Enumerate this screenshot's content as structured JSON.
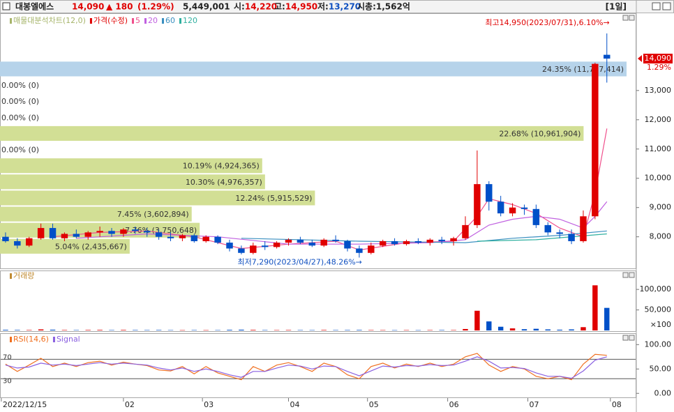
{
  "header": {
    "name": "대봉엘에스",
    "price": "14,090",
    "change": "▲ 180",
    "change_pct": "(1.29%)",
    "volume": "5,449,001",
    "items": [
      {
        "label": "시:",
        "value": "14,220"
      },
      {
        "label": "고:",
        "value": "14,950"
      },
      {
        "label": "저:",
        "value": "13,270"
      },
      {
        "label": "시총:",
        "value": "1,562억"
      }
    ],
    "period": "[1일]"
  },
  "chart_data": [
    {
      "type": "candlestick",
      "profile": {
        "name": "매물대분석차트(12,0)",
        "color": "#d2df95",
        "max_color": "#b6d3ea",
        "bins": [
          7399,
          7950,
          8501,
          9052,
          9603,
          10154,
          10705,
          11256,
          11807,
          12358,
          12909,
          13460,
          14011
        ],
        "percent": [
          5.04,
          7.76,
          7.45,
          12.24,
          10.3,
          10.19,
          0,
          22.68,
          0,
          0,
          0,
          24.35
        ],
        "volume": [
          2435667,
          3750648,
          3602894,
          5915529,
          4976357,
          4924365,
          0,
          10961904,
          0,
          0,
          0,
          11767414
        ],
        "value_labels": [
          "5.04% (2,435,667)",
          "7.76% (3,750,648)",
          "7.45% (3,602,894)",
          "12.24% (5,915,529)",
          "10.30% (4,976,357)",
          "10.19% (4,924,365)",
          "0.00% (0)",
          "22.68% (10,961,904)",
          "0.00% (0)",
          "0.00% (0)",
          "0.00% (0)",
          "24.35% (11,767,414)"
        ]
      },
      "price": {
        "name": "가격(수정)",
        "up_color": "#e00000",
        "down_color": "#0050c8",
        "open": [
          8000,
          7850,
          7700,
          7950,
          8300,
          7950,
          8100,
          8000,
          8150,
          8200,
          8100,
          8250,
          8200,
          8150,
          8000,
          7950,
          8050,
          7850,
          8000,
          7800,
          7600,
          7450,
          7700,
          7650,
          7800,
          7900,
          7800,
          7700,
          7900,
          7850,
          7600,
          7450,
          7700,
          7850,
          7750,
          7850,
          7800,
          7900,
          7850,
          7950,
          8400,
          9800,
          9200,
          8800,
          9000,
          8950,
          8400,
          8150,
          8100,
          7850,
          8700,
          14220
        ],
        "high": [
          8150,
          7950,
          8000,
          8450,
          8450,
          8150,
          8250,
          8200,
          8350,
          8300,
          8300,
          8350,
          8300,
          8250,
          8150,
          8100,
          8100,
          8050,
          8050,
          7900,
          7700,
          7800,
          7850,
          7850,
          7950,
          8000,
          7900,
          7950,
          8050,
          7900,
          7700,
          7800,
          7900,
          7950,
          7900,
          7950,
          7950,
          8000,
          8000,
          8700,
          10950,
          9900,
          9400,
          9150,
          9100,
          9100,
          8500,
          8250,
          8250,
          8900,
          13950,
          14950
        ],
        "low": [
          7800,
          7600,
          7650,
          7900,
          7900,
          7850,
          7950,
          7900,
          8000,
          8000,
          8000,
          8100,
          8000,
          7900,
          7850,
          7850,
          7800,
          7800,
          7750,
          7500,
          7400,
          7400,
          7550,
          7600,
          7700,
          7750,
          7650,
          7650,
          7800,
          7500,
          7290,
          7400,
          7650,
          7700,
          7700,
          7750,
          7700,
          7750,
          7700,
          7900,
          8300,
          8900,
          8700,
          8700,
          8750,
          8300,
          8050,
          7950,
          7750,
          7800,
          8600,
          13270
        ],
        "close": [
          7850,
          7700,
          7950,
          8300,
          7950,
          8100,
          8000,
          8150,
          8200,
          8100,
          8250,
          8200,
          8150,
          8000,
          7950,
          8050,
          7850,
          8000,
          7800,
          7600,
          7450,
          7700,
          7650,
          7800,
          7900,
          7800,
          7700,
          7900,
          7850,
          7600,
          7450,
          7700,
          7850,
          7750,
          7850,
          7800,
          7900,
          7850,
          7950,
          8400,
          9800,
          9200,
          8800,
          9000,
          8950,
          8400,
          8150,
          8100,
          7850,
          8700,
          13910,
          14090
        ]
      },
      "series": [
        {
          "name": "5",
          "color": "#f0508c",
          "x": [
            4,
            8,
            12,
            16,
            20,
            24,
            28,
            30,
            34,
            38,
            40,
            41,
            43,
            45,
            47,
            49,
            50,
            51
          ],
          "values": [
            8000,
            8150,
            8200,
            8000,
            7600,
            7750,
            7850,
            7550,
            7800,
            7850,
            8700,
            9300,
            9100,
            8800,
            8300,
            8000,
            9500,
            11700
          ]
        },
        {
          "name": "20",
          "color": "#c060e0",
          "x": [
            6,
            12,
            18,
            24,
            30,
            36,
            39,
            41,
            43,
            45,
            47,
            49,
            50,
            51
          ],
          "values": [
            7950,
            8100,
            8000,
            7750,
            7750,
            7800,
            7900,
            8400,
            8600,
            8700,
            8600,
            8300,
            8700,
            9200
          ]
        },
        {
          "name": "60",
          "color": "#3a8fc0",
          "x": [
            20,
            30,
            39,
            43,
            47,
            51
          ],
          "values": [
            7950,
            7850,
            7800,
            7950,
            8050,
            8200
          ]
        },
        {
          "name": "120",
          "color": "#30b0a0",
          "x": [
            40,
            45,
            51
          ],
          "values": [
            7850,
            7900,
            8100
          ]
        }
      ],
      "ylim": [
        6920,
        15640
      ],
      "yticks": [
        {
          "value": 8000,
          "label": "8,000"
        },
        {
          "value": 9000,
          "label": "9,000"
        },
        {
          "value": 10000,
          "label": "10,000"
        },
        {
          "value": 11000,
          "label": "11,000"
        },
        {
          "value": 12000,
          "label": "12,000"
        },
        {
          "value": 13000,
          "label": "13,000"
        }
      ],
      "last_label": "14,090",
      "last_change_label": "1.29%",
      "annotations": [
        {
          "text": "최고14,950(2023/07/31),6.10%→",
          "color": "#e00000"
        },
        {
          "text": "최저7,290(2023/04/27),48.26%→",
          "color": "#1050c0"
        }
      ]
    },
    {
      "type": "bar",
      "name": "거래량",
      "name_color": "#c08a30",
      "values": [
        1500,
        1200,
        1000,
        2500,
        1800,
        1000,
        900,
        1100,
        1300,
        900,
        1200,
        1000,
        900,
        1100,
        800,
        700,
        900,
        700,
        800,
        1500,
        1800,
        1300,
        900,
        800,
        1000,
        900,
        800,
        1100,
        900,
        1000,
        1200,
        900,
        800,
        700,
        800,
        700,
        900,
        1000,
        900,
        3500,
        48000,
        22000,
        9000,
        5000,
        3000,
        4000,
        2500,
        1800,
        2500,
        8000,
        110000,
        55000
      ],
      "ylim": [
        0,
        125800
      ],
      "yticks": [
        {
          "value": 50000,
          "label": "50,000"
        },
        {
          "value": 100000,
          "label": "100,000"
        }
      ],
      "unit_label": "×100"
    },
    {
      "type": "line",
      "series": [
        {
          "name": "RSI(14,6)",
          "color": "#f07020",
          "values": [
            60,
            45,
            58,
            72,
            55,
            62,
            55,
            63,
            66,
            58,
            64,
            60,
            57,
            48,
            46,
            55,
            40,
            55,
            42,
            35,
            28,
            55,
            45,
            58,
            63,
            55,
            45,
            62,
            55,
            38,
            30,
            55,
            62,
            52,
            60,
            55,
            62,
            55,
            60,
            75,
            82,
            58,
            45,
            55,
            50,
            35,
            30,
            35,
            28,
            60,
            80,
            78
          ]
        },
        {
          "name": "Signal",
          "color": "#8a60e0",
          "values": [
            58,
            52,
            54,
            62,
            58,
            60,
            57,
            60,
            63,
            60,
            62,
            60,
            58,
            52,
            48,
            52,
            45,
            50,
            45,
            38,
            33,
            45,
            45,
            52,
            58,
            56,
            50,
            56,
            55,
            45,
            36,
            46,
            56,
            54,
            57,
            56,
            59,
            57,
            58,
            66,
            75,
            66,
            52,
            53,
            51,
            42,
            35,
            35,
            31,
            46,
            68,
            75
          ]
        }
      ],
      "levels": [
        {
          "value": 70,
          "label": "70"
        },
        {
          "value": 30,
          "label": "30"
        }
      ],
      "ylim": [
        -8.2,
        120.5
      ],
      "yticks": [
        {
          "value": 0,
          "label": "0.00"
        },
        {
          "value": 50,
          "label": "50.00"
        },
        {
          "value": 100,
          "label": "100.00"
        }
      ],
      "xlim": [
        -0.47,
        53.5
      ],
      "xticks": [
        {
          "value": -0.36,
          "label": "2022/12/15"
        },
        {
          "value": 10,
          "label": "02"
        },
        {
          "value": 16.7,
          "label": "03"
        },
        {
          "value": 24,
          "label": "04"
        },
        {
          "value": 30.7,
          "label": "05"
        },
        {
          "value": 37.5,
          "label": "06"
        },
        {
          "value": 44.3,
          "label": "07"
        },
        {
          "value": 51.3,
          "label": "08"
        }
      ]
    }
  ]
}
